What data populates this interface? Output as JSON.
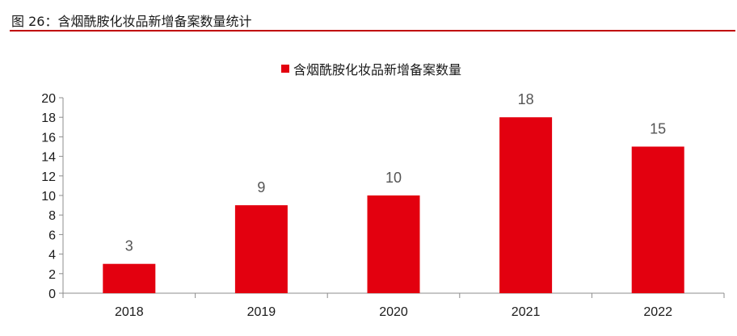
{
  "figure_title": "图 26：含烟酰胺化妆品新增备案数量统计",
  "colors": {
    "bar": "#e3000f",
    "rule": "#c00000"
  },
  "chart_data": {
    "type": "bar",
    "title": "",
    "xlabel": "",
    "ylabel": "",
    "categories": [
      "2018",
      "2019",
      "2020",
      "2021",
      "2022"
    ],
    "series": [
      {
        "name": "含烟酰胺化妆品新增备案数量",
        "values": [
          3,
          9,
          10,
          18,
          15
        ]
      }
    ],
    "ylim": [
      0,
      20
    ],
    "yticks": [
      0,
      2,
      4,
      6,
      8,
      10,
      12,
      14,
      16,
      18,
      20
    ],
    "data_labels": true,
    "grid": false,
    "legend": "top-center"
  }
}
